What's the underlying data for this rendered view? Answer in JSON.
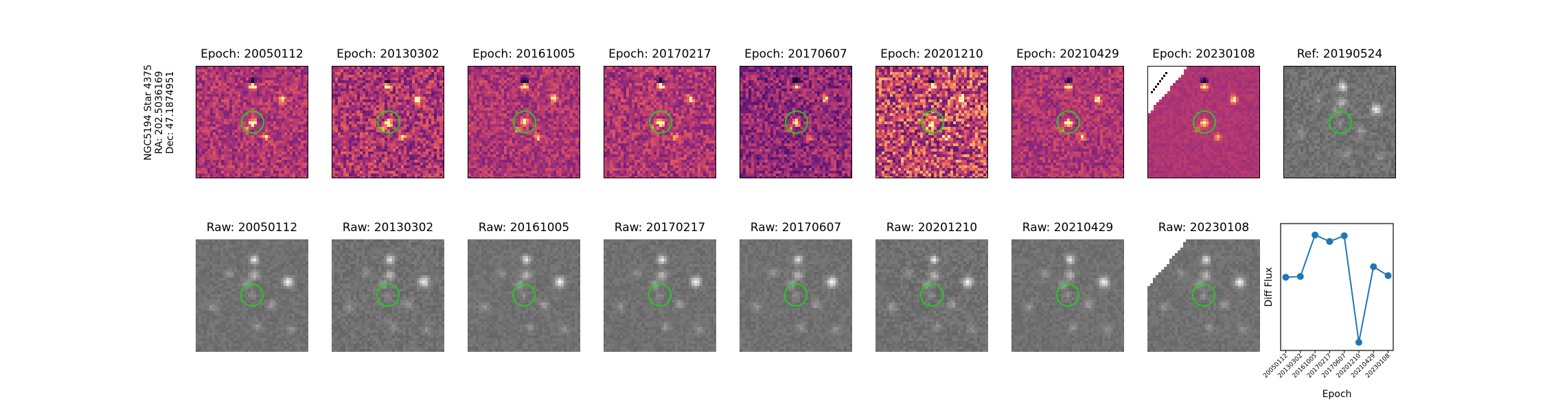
{
  "star": {
    "line1": "NGC5194 Star 4375",
    "line2": "RA: 202.5036169",
    "line3": "Dec: 47.1874951"
  },
  "epochs": [
    "20050112",
    "20130302",
    "20161005",
    "20170217",
    "20170607",
    "20201210",
    "20210429",
    "20230108"
  ],
  "row1_titles": [
    "Epoch: 20050112",
    "Epoch: 20130302",
    "Epoch: 20161005",
    "Epoch: 20170217",
    "Epoch: 20170607",
    "Epoch: 20201210",
    "Epoch: 20210429",
    "Epoch: 20230108"
  ],
  "ref_title": "Ref: 20190524",
  "row2_titles": [
    "Raw: 20050112",
    "Raw: 20130302",
    "Raw: 20161005",
    "Raw: 20170217",
    "Raw: 20170607",
    "Raw: 20201210",
    "Raw: 20210429",
    "Raw: 20230108"
  ],
  "colors": {
    "aperture": "#22cc22",
    "series": "#1f77b4"
  },
  "chart_data": {
    "type": "line",
    "xlabel": "Epoch",
    "ylabel": "Diff Flux",
    "categories": [
      "20050112",
      "20130302",
      "20161005",
      "20170217",
      "20170607",
      "20201210",
      "20210429",
      "20230108"
    ],
    "values": [
      0.42,
      0.43,
      0.94,
      0.86,
      0.93,
      -0.38,
      0.55,
      0.44
    ],
    "ylim": [
      -0.48,
      1.08
    ],
    "grid": false,
    "legend": "none"
  }
}
